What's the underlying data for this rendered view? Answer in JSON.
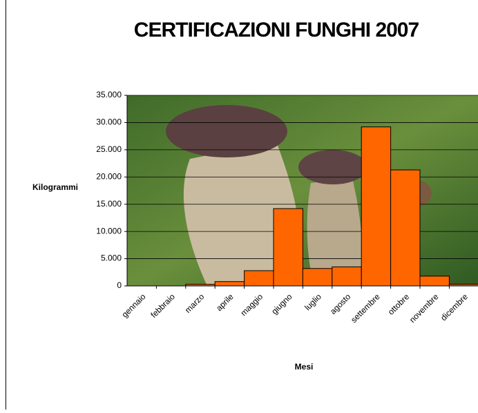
{
  "chart_data": {
    "type": "bar",
    "title": "CERTIFICAZIONI FUNGHI 2007",
    "y_label": "Kilogrammi",
    "x_label": "Mesi",
    "categories": [
      "gennaio",
      "febbraio",
      "marzo",
      "aprile",
      "maggio",
      "giugno",
      "luglio",
      "agosto",
      "settembre",
      "ottobre",
      "novembre",
      "dicembre"
    ],
    "values": [
      0,
      0,
      300,
      800,
      2800,
      14200,
      3200,
      3500,
      29200,
      21300,
      1800,
      300
    ],
    "color": "#ff6600",
    "ylim": [
      0,
      35000
    ],
    "yticks": [
      0,
      {
        "value": 5000,
        "label": "5.000"
      },
      {
        "value": 10000,
        "label": "10.000"
      },
      {
        "value": 15000,
        "label": "15.000"
      },
      {
        "value": 20000,
        "label": "20.000"
      },
      {
        "value": 25000,
        "label": "25.000"
      },
      {
        "value": 30000,
        "label": "30.000"
      },
      {
        "value": 35000,
        "label": "35.000"
      }
    ],
    "grid": true
  }
}
